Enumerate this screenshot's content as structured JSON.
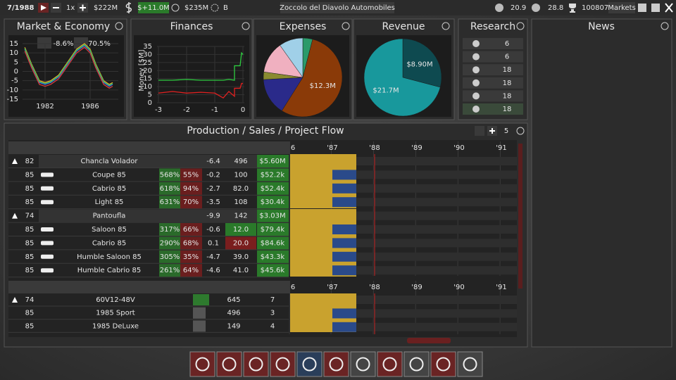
{
  "top_bar": {
    "date": "7/1988",
    "speed": "1x",
    "cash": "$222M",
    "profit": "$+11.0M",
    "value": "$235M",
    "rating": "B",
    "company": "Zoccolo del Diavolo Automobiles",
    "stat_1": "20.9",
    "stat_2": "28.8",
    "score": "100807",
    "markets": "Markets"
  },
  "panels": {
    "market": "Market & Economy",
    "finances": "Finances",
    "expenses": "Expenses",
    "revenue": "Revenue",
    "research": "Research",
    "news": "News",
    "production": "Production / Sales / Project Flow"
  },
  "chart_data": [
    {
      "type": "line",
      "annotations": [
        "-8.6%",
        "70.5%"
      ],
      "x": [
        1980.2,
        1980.8,
        1981.5,
        1982.0,
        1982.5,
        1983.2,
        1984.0,
        1984.8,
        1985.5,
        1986.0,
        1986.5,
        1987.2,
        1987.7,
        1988.0
      ],
      "xlim": [
        1980,
        1988.5
      ],
      "xticks": [
        1982,
        1986
      ],
      "ylim": [
        -15,
        15
      ],
      "yticks": [
        15,
        10,
        5,
        0,
        -5,
        -10,
        -15
      ],
      "series": [
        {
          "color": "#3a6ee8",
          "values": [
            12,
            3,
            -6,
            -7,
            -6,
            -3,
            4,
            11,
            14,
            11,
            3,
            -6,
            -8,
            -7
          ]
        },
        {
          "color": "#e8a030",
          "values": [
            13,
            4,
            -5,
            -6,
            -5,
            -2,
            5,
            12,
            15,
            12,
            4,
            -5,
            -7,
            -6
          ]
        },
        {
          "color": "#d83a3a",
          "values": [
            11,
            2,
            -7,
            -8,
            -7,
            -4,
            3,
            10,
            13,
            10,
            2,
            -7,
            -9,
            -8
          ]
        },
        {
          "color": "#3ac050",
          "values": [
            12.5,
            3.5,
            -5.5,
            -6.5,
            -5.5,
            -2.5,
            4.5,
            11.5,
            14.5,
            11.5,
            3.5,
            -5.5,
            -7.5,
            -6.5
          ]
        }
      ]
    },
    {
      "type": "line",
      "ylabel": "Money [$M]",
      "x": [
        -3,
        -2.5,
        -2,
        -1.5,
        -1,
        -0.7,
        -0.5,
        -0.3,
        -0.3,
        -0.1,
        -0.05,
        0
      ],
      "xlim": [
        -3.05,
        0.05
      ],
      "xticks": [
        -3,
        -2,
        -1,
        0
      ],
      "ylim": [
        0,
        35
      ],
      "yticks": [
        35,
        30,
        25,
        20,
        15,
        10,
        5,
        0
      ],
      "series": [
        {
          "color": "#2ecc40",
          "values": [
            14,
            14,
            14.5,
            14,
            14,
            14,
            14.5,
            14,
            23,
            23,
            31,
            30
          ]
        },
        {
          "color": "#e02020",
          "values": [
            6,
            7,
            6,
            6.5,
            6,
            3,
            7,
            4,
            9,
            9,
            12,
            12
          ]
        }
      ]
    },
    {
      "type": "pie",
      "values": [
        0.9,
        12.3,
        3.4,
        0.7,
        2.9,
        2.2
      ],
      "colors": [
        "#2a9a6a",
        "#8a3a08",
        "#2a2a8a",
        "#8a8a30",
        "#f0b0c0",
        "#a0d0e8"
      ],
      "value_labels": [
        null,
        "$12.3M",
        null,
        null,
        null,
        null
      ]
    },
    {
      "type": "pie",
      "values": [
        8.9,
        21.7
      ],
      "colors": [
        "#0e4a50",
        "#18989c"
      ],
      "value_labels": [
        "$8.90M",
        "$21.7M"
      ]
    }
  ],
  "research": [
    6,
    6,
    18,
    18,
    18,
    18
  ],
  "production": {
    "count": "5",
    "timeline": [
      "6",
      "'87",
      "'88",
      "'89",
      "'90",
      "'91"
    ],
    "rows": [
      {
        "year": "82",
        "name": "Chancla Volador",
        "delta": "-6.4",
        "value": "496",
        "price": "$5.60M",
        "group": true
      },
      {
        "year": "85",
        "name": "Coupe 85",
        "share": "568%",
        "margin": "55%",
        "delta": "-0.2",
        "value": "100",
        "price": "$52.2k"
      },
      {
        "year": "85",
        "name": "Cabrio 85",
        "share": "618%",
        "margin": "94%",
        "delta": "-2.7",
        "value": "82.0",
        "price": "$52.4k"
      },
      {
        "year": "85",
        "name": "Light 85",
        "share": "631%",
        "margin": "70%",
        "delta": "-3.5",
        "value": "108",
        "price": "$30.4k"
      },
      {
        "year": "74",
        "name": "Pantoufla",
        "delta": "-9.9",
        "value": "142",
        "price": "$3.03M",
        "group": true
      },
      {
        "year": "85",
        "name": "Saloon 85",
        "share": "317%",
        "margin": "66%",
        "delta": "-0.6",
        "value": "12.0",
        "price": "$79.4k",
        "value_color": "#2a7a2a"
      },
      {
        "year": "85",
        "name": "Cabrio 85",
        "share": "290%",
        "margin": "68%",
        "delta": "0.1",
        "value": "20.0",
        "price": "$84.6k",
        "value_color": "#7a1e1e"
      },
      {
        "year": "85",
        "name": "Humble Saloon 85",
        "share": "305%",
        "margin": "35%",
        "delta": "-4.7",
        "value": "39.0",
        "price": "$43.3k"
      },
      {
        "year": "85",
        "name": "Humble Cabrio 85",
        "share": "261%",
        "margin": "64%",
        "delta": "-4.6",
        "value": "41.0",
        "price": "$45.6k"
      }
    ],
    "engine_rows": [
      {
        "year": "74",
        "name": "60V12-48V",
        "value": "645",
        "count": "7",
        "group": true
      },
      {
        "year": "85",
        "name": "1985 Sport",
        "value": "496",
        "count": "3"
      },
      {
        "year": "85",
        "name": "1985 DeLuxe",
        "value": "149",
        "count": "4"
      }
    ]
  }
}
